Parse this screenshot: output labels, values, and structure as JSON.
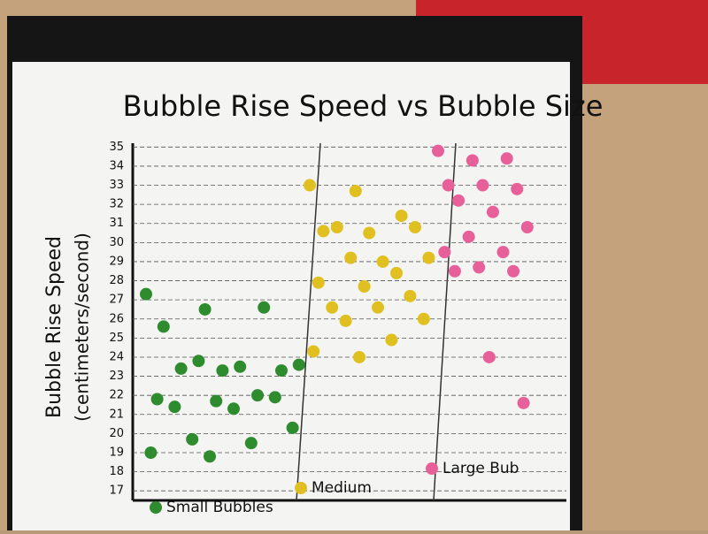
{
  "chart_data": {
    "type": "strip",
    "title": "Bubble Rise Speed vs Bubble Size",
    "y_label_lines": [
      "Bubble Rise Speed",
      "(centimeters/second)"
    ],
    "ylim": [
      16.5,
      35.2
    ],
    "yticks": [
      17,
      18,
      19,
      20,
      21,
      22,
      23,
      24,
      25,
      26,
      27,
      28,
      29,
      30,
      31,
      32,
      33,
      34,
      35
    ],
    "grid": true,
    "series": [
      {
        "name": "Small Bubbles",
        "color": "#2e8b2e",
        "values": [
          27.3,
          26.5,
          26.6,
          25.6,
          23.3,
          23.3,
          23.4,
          23.5,
          23.6,
          23.8,
          22.0,
          21.8,
          21.7,
          21.9,
          21.4,
          21.3,
          20.3,
          19.7,
          19.5,
          19.0,
          18.8
        ]
      },
      {
        "name": "Medium",
        "color": "#e0c020",
        "values": [
          33.0,
          32.7,
          31.4,
          30.6,
          30.5,
          30.8,
          30.8,
          29.0,
          29.2,
          29.2,
          28.4,
          27.9,
          27.7,
          27.2,
          26.6,
          26.6,
          26.0,
          25.9,
          24.9,
          24.3,
          24.0
        ]
      },
      {
        "name": "Large Bub",
        "color": "#e8609a",
        "values": [
          34.8,
          34.3,
          34.4,
          33.0,
          33.0,
          32.8,
          32.2,
          31.6,
          30.8,
          30.3,
          29.5,
          29.5,
          28.7,
          28.5,
          28.5,
          24.0,
          21.6
        ]
      }
    ]
  }
}
